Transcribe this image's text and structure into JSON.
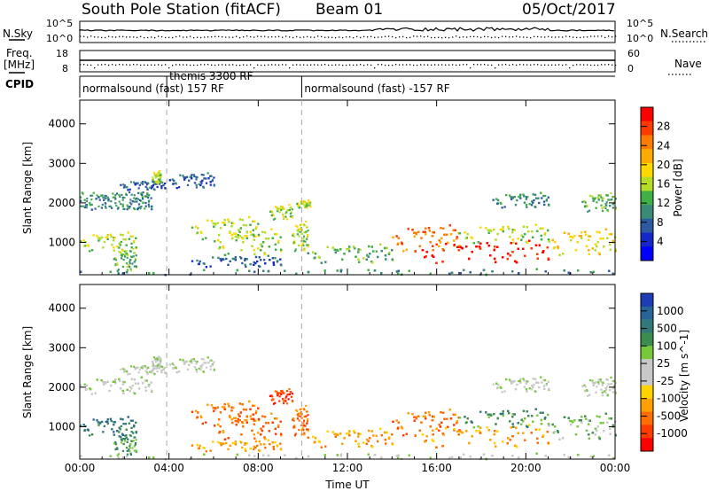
{
  "header": {
    "station": "South Pole Station (fitACF)",
    "beam": "Beam 01",
    "date": "05/Oct/2017"
  },
  "top_panels": {
    "nsky_label": "N.Sky",
    "nsky_ticks": [
      "10^5",
      "10^0"
    ],
    "nsearch_label": "N.Search",
    "nsearch_ticks": [
      "10^5",
      "10^0"
    ],
    "freq_label_1": "Freq.",
    "freq_label_2": "[MHz]",
    "freq_ticks": [
      "18",
      "8"
    ],
    "nave_label": "Nave",
    "nave_ticks": [
      "60",
      "0"
    ],
    "cpid_label": "CPID",
    "cpid_segments": [
      {
        "label": "normalsound (fast) 157 RF",
        "start_hour": 0.0,
        "end_hour": 3.9
      },
      {
        "label": "themis 3300 RF",
        "start_hour": 3.9,
        "end_hour": 9.95
      },
      {
        "label": "normalsound (fast) -157 RF",
        "start_hour": 9.95,
        "end_hour": 24.0
      }
    ]
  },
  "power_colorbar": {
    "title": "Power [dB]",
    "ticks": [
      "28",
      "24",
      "20",
      "16",
      "12",
      "8",
      "4"
    ],
    "colors": [
      "#ff0000",
      "#ff3a00",
      "#ff7a00",
      "#ffaa00",
      "#ffd800",
      "#b4dc28",
      "#3faf46",
      "#3a8a78",
      "#2c5aa0",
      "#1428c8",
      "#0000ff"
    ]
  },
  "velocity_colorbar": {
    "title": "Velocity [m s^-1]",
    "ticks": [
      "1000",
      "500",
      "100",
      "25",
      "-25",
      "-100",
      "-500",
      "-1000"
    ],
    "colors": [
      "#1e3cb4",
      "#286496",
      "#327878",
      "#3c8c50",
      "#78c83c",
      "#c8c8c8",
      "#c8c8c8",
      "#ffd200",
      "#ffa000",
      "#ff6e00",
      "#ff3c00",
      "#ff0000"
    ]
  },
  "chart_data": [
    {
      "type": "heatmap",
      "quantity": "Power",
      "units": "dB",
      "xlabel": "Time UT",
      "ylabel": "Slant Range [km]",
      "xlim_hours": [
        0,
        24
      ],
      "ylim": [
        180,
        4600
      ],
      "x_ticks": [
        "00:00",
        "04:00",
        "08:00",
        "12:00",
        "16:00",
        "20:00",
        "00:00"
      ],
      "y_ticks": [
        1000,
        2000,
        3000,
        4000
      ],
      "regions": [
        {
          "t0": 0.0,
          "t1": 3.2,
          "r0": 1850,
          "r1": 2300,
          "value": 10
        },
        {
          "t0": 1.8,
          "t1": 3.8,
          "r0": 2350,
          "r1": 2600,
          "value": 8
        },
        {
          "t0": 3.2,
          "t1": 3.6,
          "r0": 2500,
          "r1": 2850,
          "value": 14
        },
        {
          "t0": 4.0,
          "t1": 6.0,
          "r0": 2400,
          "r1": 2800,
          "value": 6
        },
        {
          "t0": 0.0,
          "t1": 2.5,
          "r0": 800,
          "r1": 1300,
          "value": 16
        },
        {
          "t0": 1.5,
          "t1": 2.5,
          "r0": 300,
          "r1": 900,
          "value": 12
        },
        {
          "t0": 5.0,
          "t1": 8.0,
          "r0": 1100,
          "r1": 1700,
          "value": 16
        },
        {
          "t0": 6.0,
          "t1": 9.0,
          "r0": 700,
          "r1": 1400,
          "value": 14
        },
        {
          "t0": 5.0,
          "t1": 9.0,
          "r0": 400,
          "r1": 700,
          "value": 8
        },
        {
          "t0": 8.5,
          "t1": 9.5,
          "r0": 1600,
          "r1": 2000,
          "value": 16
        },
        {
          "t0": 9.5,
          "t1": 10.2,
          "r0": 800,
          "r1": 1600,
          "value": 14
        },
        {
          "t0": 9.7,
          "t1": 10.3,
          "r0": 1900,
          "r1": 2100,
          "value": 14
        },
        {
          "t0": 10.2,
          "t1": 14.0,
          "r0": 500,
          "r1": 1000,
          "value": 12
        },
        {
          "t0": 14.0,
          "t1": 17.0,
          "r0": 800,
          "r1": 1500,
          "value": 22
        },
        {
          "t0": 15.0,
          "t1": 21.0,
          "r0": 500,
          "r1": 1100,
          "value": 28
        },
        {
          "t0": 17.0,
          "t1": 21.0,
          "r0": 1000,
          "r1": 1500,
          "value": 16
        },
        {
          "t0": 21.0,
          "t1": 24.0,
          "r0": 700,
          "r1": 1400,
          "value": 18
        },
        {
          "t0": 22.5,
          "t1": 24.0,
          "r0": 1800,
          "r1": 2300,
          "value": 12
        },
        {
          "t0": 18.5,
          "t1": 21.0,
          "r0": 1900,
          "r1": 2300,
          "value": 10
        },
        {
          "t0": 0.0,
          "t1": 24.0,
          "r0": 200,
          "r1": 350,
          "value": 10
        }
      ]
    },
    {
      "type": "heatmap",
      "quantity": "Velocity",
      "units": "m s^-1",
      "xlabel": "Time UT",
      "ylabel": "Slant Range [km]",
      "xlim_hours": [
        0,
        24
      ],
      "ylim": [
        180,
        4600
      ],
      "x_ticks": [
        "00:00",
        "04:00",
        "08:00",
        "12:00",
        "16:00",
        "20:00",
        "00:00"
      ],
      "y_ticks": [
        1000,
        2000,
        3000,
        4000
      ],
      "regions": [
        {
          "t0": 0.0,
          "t1": 3.2,
          "r0": 1850,
          "r1": 2300,
          "value": 0
        },
        {
          "t0": 1.8,
          "t1": 3.8,
          "r0": 2350,
          "r1": 2600,
          "value": 0
        },
        {
          "t0": 3.2,
          "t1": 3.6,
          "r0": 2500,
          "r1": 2850,
          "value": 0
        },
        {
          "t0": 4.0,
          "t1": 6.0,
          "r0": 2400,
          "r1": 2800,
          "value": 0
        },
        {
          "t0": 0.0,
          "t1": 2.5,
          "r0": 800,
          "r1": 1300,
          "value": 200
        },
        {
          "t0": 1.5,
          "t1": 2.5,
          "r0": 300,
          "r1": 900,
          "value": 100
        },
        {
          "t0": 5.0,
          "t1": 8.0,
          "r0": 1100,
          "r1": 1700,
          "value": -300
        },
        {
          "t0": 6.0,
          "t1": 9.0,
          "r0": 700,
          "r1": 1400,
          "value": -400
        },
        {
          "t0": 5.0,
          "t1": 9.0,
          "r0": 400,
          "r1": 700,
          "value": -150
        },
        {
          "t0": 8.5,
          "t1": 9.5,
          "r0": 1600,
          "r1": 2000,
          "value": -500
        },
        {
          "t0": 9.5,
          "t1": 10.2,
          "r0": 800,
          "r1": 1600,
          "value": -400
        },
        {
          "t0": 10.2,
          "t1": 14.0,
          "r0": 500,
          "r1": 1000,
          "value": -150
        },
        {
          "t0": 14.0,
          "t1": 17.0,
          "r0": 800,
          "r1": 1500,
          "value": -300
        },
        {
          "t0": 15.0,
          "t1": 21.0,
          "r0": 500,
          "r1": 1100,
          "value": -200
        },
        {
          "t0": 17.0,
          "t1": 21.0,
          "r0": 1000,
          "r1": 1500,
          "value": 100
        },
        {
          "t0": 21.0,
          "t1": 24.0,
          "r0": 700,
          "r1": 1400,
          "value": 50
        },
        {
          "t0": 22.5,
          "t1": 24.0,
          "r0": 1800,
          "r1": 2300,
          "value": 0
        },
        {
          "t0": 18.5,
          "t1": 21.0,
          "r0": 1900,
          "r1": 2300,
          "value": 0
        },
        {
          "t0": 0.0,
          "t1": 24.0,
          "r0": 200,
          "r1": 350,
          "value": 0
        }
      ]
    }
  ]
}
